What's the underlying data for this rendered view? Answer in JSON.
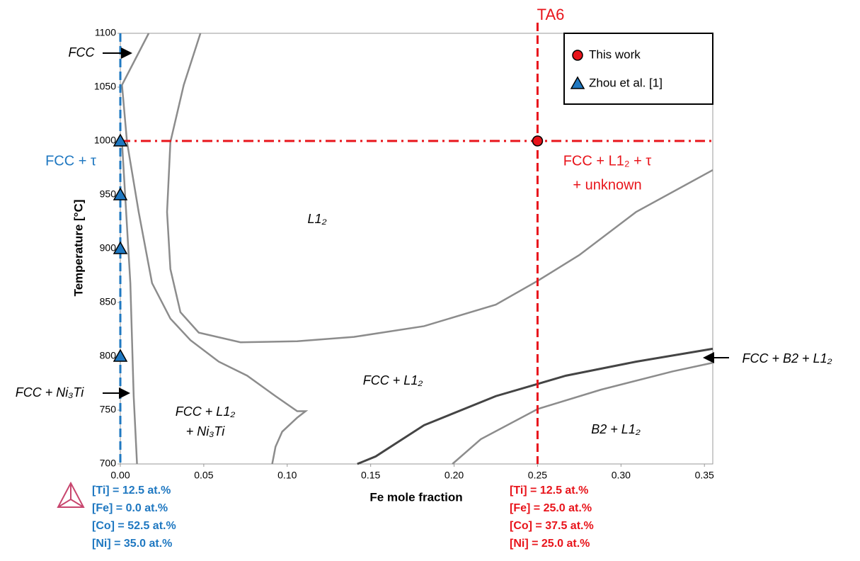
{
  "chart_data": {
    "type": "phase-diagram",
    "x_label": "Fe mole fraction",
    "y_label": "Temperature [°C]",
    "xlim": [
      0,
      0.355
    ],
    "ylim": [
      700,
      1100
    ],
    "xticks": [
      {
        "value": 0,
        "label": "0.00"
      },
      {
        "value": 0.05,
        "label": "0.05"
      },
      {
        "value": 0.1,
        "label": "0.10"
      },
      {
        "value": 0.15,
        "label": "0.15"
      },
      {
        "value": 0.2,
        "label": "0.20"
      },
      {
        "value": 0.25,
        "label": "0.25"
      },
      {
        "value": 0.3,
        "label": "0.30"
      },
      {
        "value": 0.35,
        "label": "0.35"
      }
    ],
    "yticks": [
      700,
      750,
      800,
      850,
      900,
      950,
      1000,
      1050,
      1100
    ],
    "grid": false,
    "legend_position": "upper right",
    "series": [
      {
        "name": "This work",
        "color": "#e8141b",
        "marker": "circle",
        "x": [
          0.25
        ],
        "values": [
          1000
        ]
      },
      {
        "name": "Zhou et al. [1]",
        "color": "#1f78c1",
        "marker": "triangle",
        "x": [
          0,
          0,
          0,
          0
        ],
        "values": [
          1000,
          950,
          900,
          800
        ]
      }
    ],
    "boundaries": [
      {
        "color": "#8c8c8c",
        "x": [
          0.017,
          0.001
        ],
        "y": [
          1100,
          1052
        ]
      },
      {
        "color": "#8c8c8c",
        "x": [
          0.001,
          0.004,
          0.011,
          0.019,
          0.03,
          0.042,
          0.059,
          0.076,
          0.093,
          0.106,
          0.111,
          0.106,
          0.097,
          0.093,
          0.091
        ],
        "y": [
          1052,
          999,
          934,
          868,
          835,
          815,
          795,
          782,
          763,
          749,
          749,
          743,
          730,
          716,
          700
        ]
      },
      {
        "color": "#8c8c8c",
        "x": [
          0.001,
          0.006,
          0.008,
          0.01
        ],
        "y": [
          999,
          868,
          763,
          700
        ]
      },
      {
        "color": "#8c8c8c",
        "x": [
          0.048,
          0.038,
          0.03,
          0.028,
          0.03,
          0.036,
          0.047,
          0.072,
          0.106,
          0.14,
          0.182,
          0.225,
          0.25,
          0.275,
          0.309,
          0.355
        ],
        "y": [
          1100,
          1052,
          999,
          934,
          881,
          841,
          822,
          813,
          814,
          818,
          828,
          848,
          870,
          894,
          934,
          973
        ]
      },
      {
        "color": "#444444",
        "x": [
          0.142,
          0.153,
          0.182,
          0.225,
          0.267,
          0.309,
          0.355
        ],
        "y": [
          700,
          707,
          736,
          763,
          782,
          795,
          807
        ]
      },
      {
        "color": "#8c8c8c",
        "x": [
          0.199,
          0.216,
          0.25,
          0.288,
          0.331,
          0.355
        ],
        "y": [
          700,
          723,
          751,
          769,
          786,
          794
        ]
      }
    ],
    "vlines": [
      {
        "x": 0,
        "color": "#1f78c1"
      },
      {
        "x": 0.25,
        "color": "#e8141b"
      }
    ],
    "hlines": [
      {
        "y": 1000,
        "color": "#e8141b"
      }
    ],
    "annotations": [
      "FCC",
      "FCC + τ",
      "L1₂",
      "FCC + L1₂",
      "FCC + L1₂",
      "+ Ni₃Ti",
      "FCC + Ni₃Ti",
      "B2 + L1₂",
      "FCC + B2 + L1₂",
      "FCC + L1₂ + τ",
      "+ unknown",
      "TA6"
    ],
    "composition_left": [
      "[Ti] = 12.5 at.%",
      "[Fe] = 0.0 at.%",
      "[Co] = 52.5 at.%",
      "[Ni] = 35.0 at.%"
    ],
    "composition_right": [
      "[Ti] = 12.5 at.%",
      "[Fe] = 25.0 at.%",
      "[Co] = 37.5 at.%",
      "[Ni] = 25.0 at.%"
    ]
  }
}
